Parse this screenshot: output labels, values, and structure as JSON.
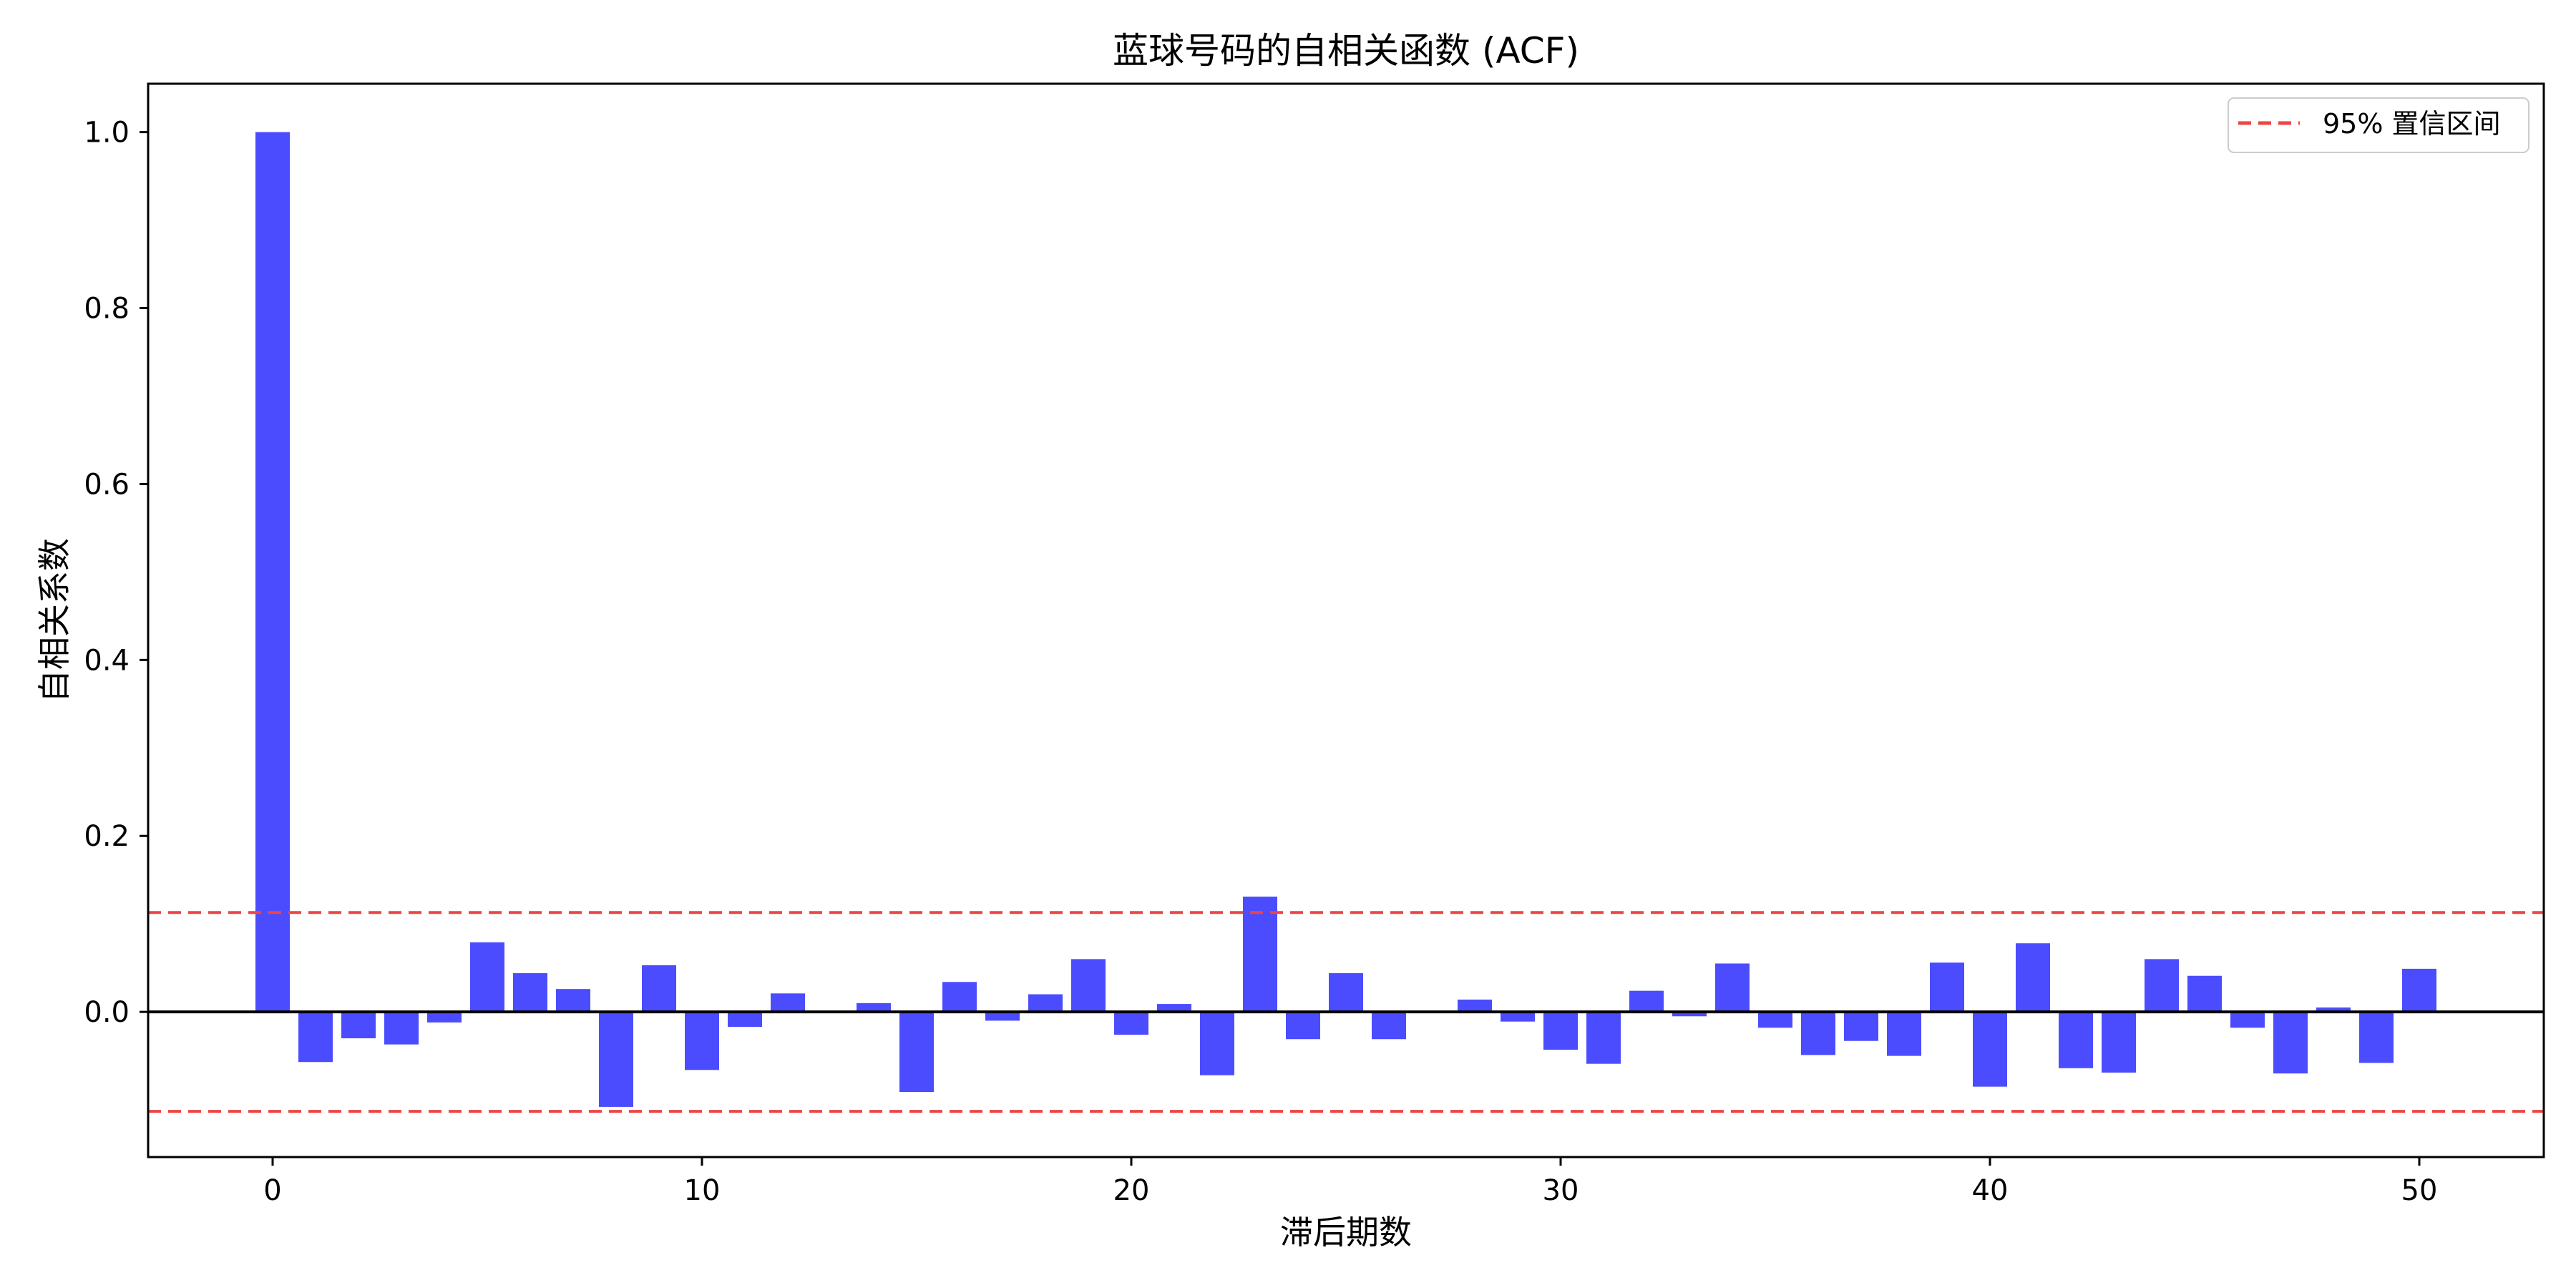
{
  "chart_data": {
    "type": "bar",
    "title": "蓝球号码的自相关函数 (ACF)",
    "xlabel": "滞后期数",
    "ylabel": "自相关系数",
    "xlim": [
      -2.9,
      52.9
    ],
    "ylim": [
      -0.165,
      1.055
    ],
    "xticks": [
      0,
      10,
      20,
      30,
      40,
      50
    ],
    "yticks": [
      0.0,
      0.2,
      0.4,
      0.6,
      0.8,
      1.0
    ],
    "ytick_labels": [
      "0.0",
      "0.2",
      "0.4",
      "0.6",
      "0.8",
      "1.0"
    ],
    "x": [
      0,
      1,
      2,
      3,
      4,
      5,
      6,
      7,
      8,
      9,
      10,
      11,
      12,
      13,
      14,
      15,
      16,
      17,
      18,
      19,
      20,
      21,
      22,
      23,
      24,
      25,
      26,
      27,
      28,
      29,
      30,
      31,
      32,
      33,
      34,
      35,
      36,
      37,
      38,
      39,
      40,
      41,
      42,
      43,
      44,
      45,
      46,
      47,
      48,
      49,
      50
    ],
    "values": [
      1.0,
      -0.057,
      -0.03,
      -0.037,
      -0.012,
      0.079,
      0.044,
      0.026,
      -0.108,
      0.053,
      -0.066,
      -0.017,
      0.021,
      0.0,
      0.01,
      -0.091,
      0.034,
      -0.01,
      0.02,
      0.06,
      -0.026,
      0.009,
      -0.072,
      0.131,
      -0.031,
      0.044,
      -0.031,
      0.0,
      0.014,
      -0.011,
      -0.043,
      -0.059,
      0.024,
      -0.005,
      0.055,
      -0.018,
      -0.049,
      -0.033,
      -0.05,
      0.056,
      -0.085,
      0.078,
      -0.064,
      -0.069,
      0.06,
      0.041,
      -0.018,
      -0.07,
      0.005,
      -0.058,
      0.049
    ],
    "confidence_bound": 0.113,
    "bar_color": "#4c4cff",
    "confidence_color": "#ee4444",
    "legend": {
      "label": "95% 置信区间",
      "position": "upper right"
    },
    "grid": false
  }
}
